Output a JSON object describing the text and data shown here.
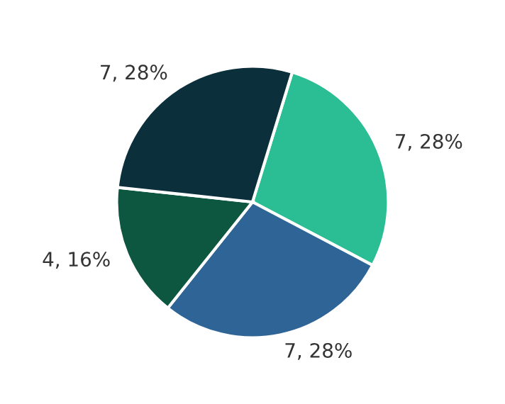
{
  "chart_data": {
    "type": "pie",
    "categories": [
      null,
      null,
      null,
      null
    ],
    "values": [
      7,
      7,
      4,
      7
    ],
    "colors": [
      "#2bbd93",
      "#2e6496",
      "#0d5640",
      "#0c2f3c"
    ],
    "value_labels": [
      "7, 28%",
      "7, 28%",
      "4, 16%",
      "7, 28%"
    ]
  }
}
